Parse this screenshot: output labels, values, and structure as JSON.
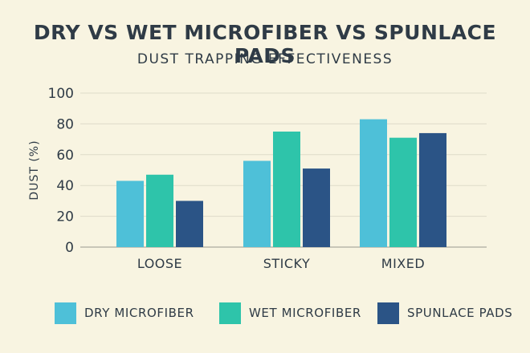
{
  "chart_data": {
    "type": "bar",
    "title": "DRY VS WET MICROFIBER VS SPUNLACE PADS",
    "subtitle": "DUST TRAPPING EFFECTIVENESS",
    "ylabel": "DUST (%)",
    "xlabel": "",
    "ylim": [
      0,
      100
    ],
    "yticks": [
      "0",
      "20",
      "40",
      "60",
      "80",
      "100"
    ],
    "grid": true,
    "legend_position": "bottom",
    "categories": [
      "LOOSE",
      "STICKY",
      "MIXED"
    ],
    "series": [
      {
        "name": "DRY MICROFIBER",
        "color": "#4ec0d8",
        "values": [
          43,
          56,
          83
        ]
      },
      {
        "name": "WET MICROFIBER",
        "color": "#2ec4aa",
        "values": [
          47,
          75,
          71
        ]
      },
      {
        "name": "SPUNLACE PADS",
        "color": "#2b5486",
        "values": [
          30,
          51,
          74
        ]
      }
    ]
  }
}
